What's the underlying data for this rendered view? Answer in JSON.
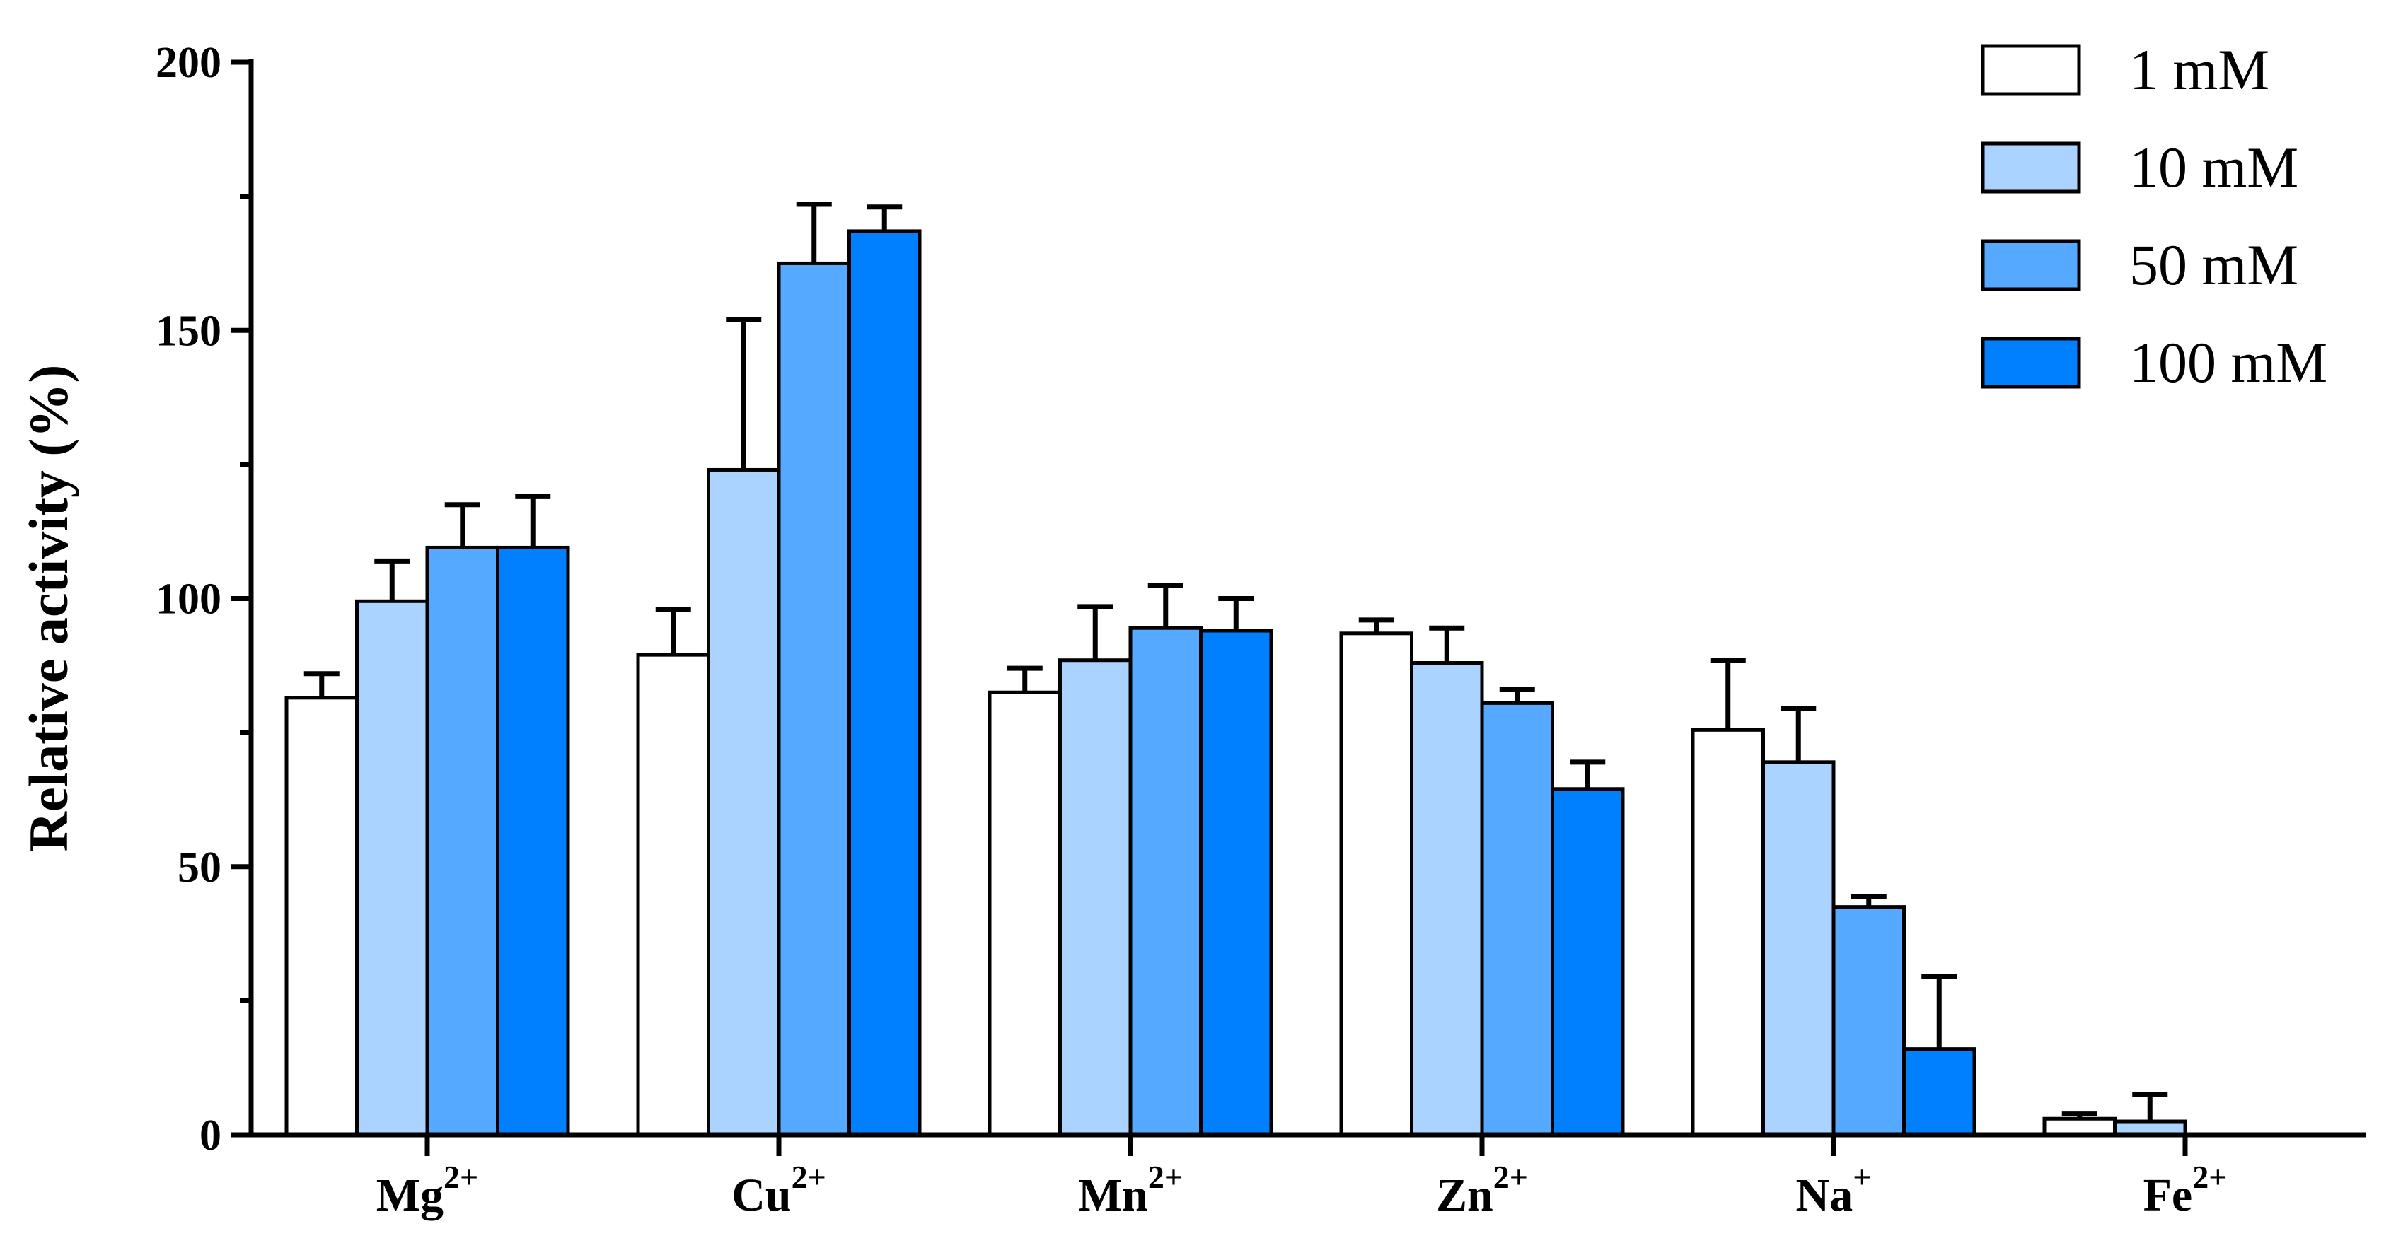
{
  "chart_data": {
    "type": "bar",
    "ylabel": "Relative activity (%)",
    "xlabel": "",
    "ylim": [
      0,
      200
    ],
    "yticks": [
      0,
      50,
      100,
      150,
      200
    ],
    "grid": false,
    "legend_position": "top-right",
    "categories": [
      {
        "base": "Mg",
        "sup": "2+"
      },
      {
        "base": "Cu",
        "sup": "2+"
      },
      {
        "base": "Mn",
        "sup": "2+"
      },
      {
        "base": "Zn",
        "sup": "2+"
      },
      {
        "base": "Na",
        "sup": "+"
      },
      {
        "base": "Fe",
        "sup": "2+"
      }
    ],
    "series": [
      {
        "name": "1 mM",
        "color": "#ffffff",
        "values": [
          81.5,
          89.5,
          82.5,
          93.5,
          75.5,
          3
        ],
        "errors": [
          4.5,
          8.5,
          4.5,
          2.5,
          13,
          1
        ]
      },
      {
        "name": "10 mM",
        "color": "#aad4ff",
        "values": [
          99.5,
          124,
          88.5,
          88,
          69.5,
          2.5
        ],
        "errors": [
          7.5,
          28,
          10,
          6.5,
          10,
          5
        ]
      },
      {
        "name": "50 mM",
        "color": "#55aaff",
        "values": [
          109.5,
          162.5,
          94.5,
          80.5,
          42.5,
          0
        ],
        "errors": [
          8,
          11,
          8,
          2.5,
          2,
          0
        ]
      },
      {
        "name": "100 mM",
        "color": "#0080ff",
        "values": [
          109.5,
          168.5,
          94,
          64.5,
          16,
          0
        ],
        "errors": [
          9.5,
          4.5,
          6,
          5,
          13.5,
          0
        ]
      }
    ]
  }
}
